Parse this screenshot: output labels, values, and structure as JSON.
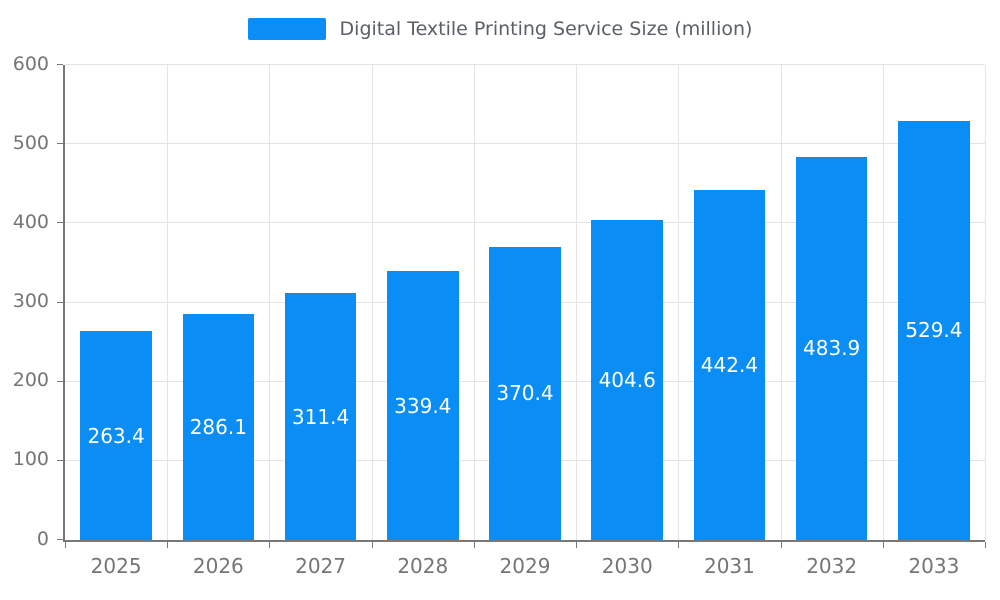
{
  "chart_data": {
    "type": "bar",
    "title": "Digital Textile Printing Service Size (million)",
    "categories": [
      "2025",
      "2026",
      "2027",
      "2028",
      "2029",
      "2030",
      "2031",
      "2032",
      "2033"
    ],
    "values": [
      263.4,
      286.1,
      311.4,
      339.4,
      370.4,
      404.6,
      442.4,
      483.9,
      529.4
    ],
    "ylim": [
      0,
      600
    ],
    "ytick_step": 100,
    "ytick_labels": [
      "0",
      "100",
      "200",
      "300",
      "400",
      "500",
      "600"
    ],
    "bar_color": "#0b8df6",
    "bar_label_color": "#ffffff",
    "grid": true,
    "legend_position": "top",
    "xlabel": "",
    "ylabel": ""
  },
  "colors": {
    "accent": "#0b8df6",
    "grid": "#e4e4e4",
    "axis": "#787878",
    "tick_text": "#757575",
    "title_text": "#5a6068"
  }
}
